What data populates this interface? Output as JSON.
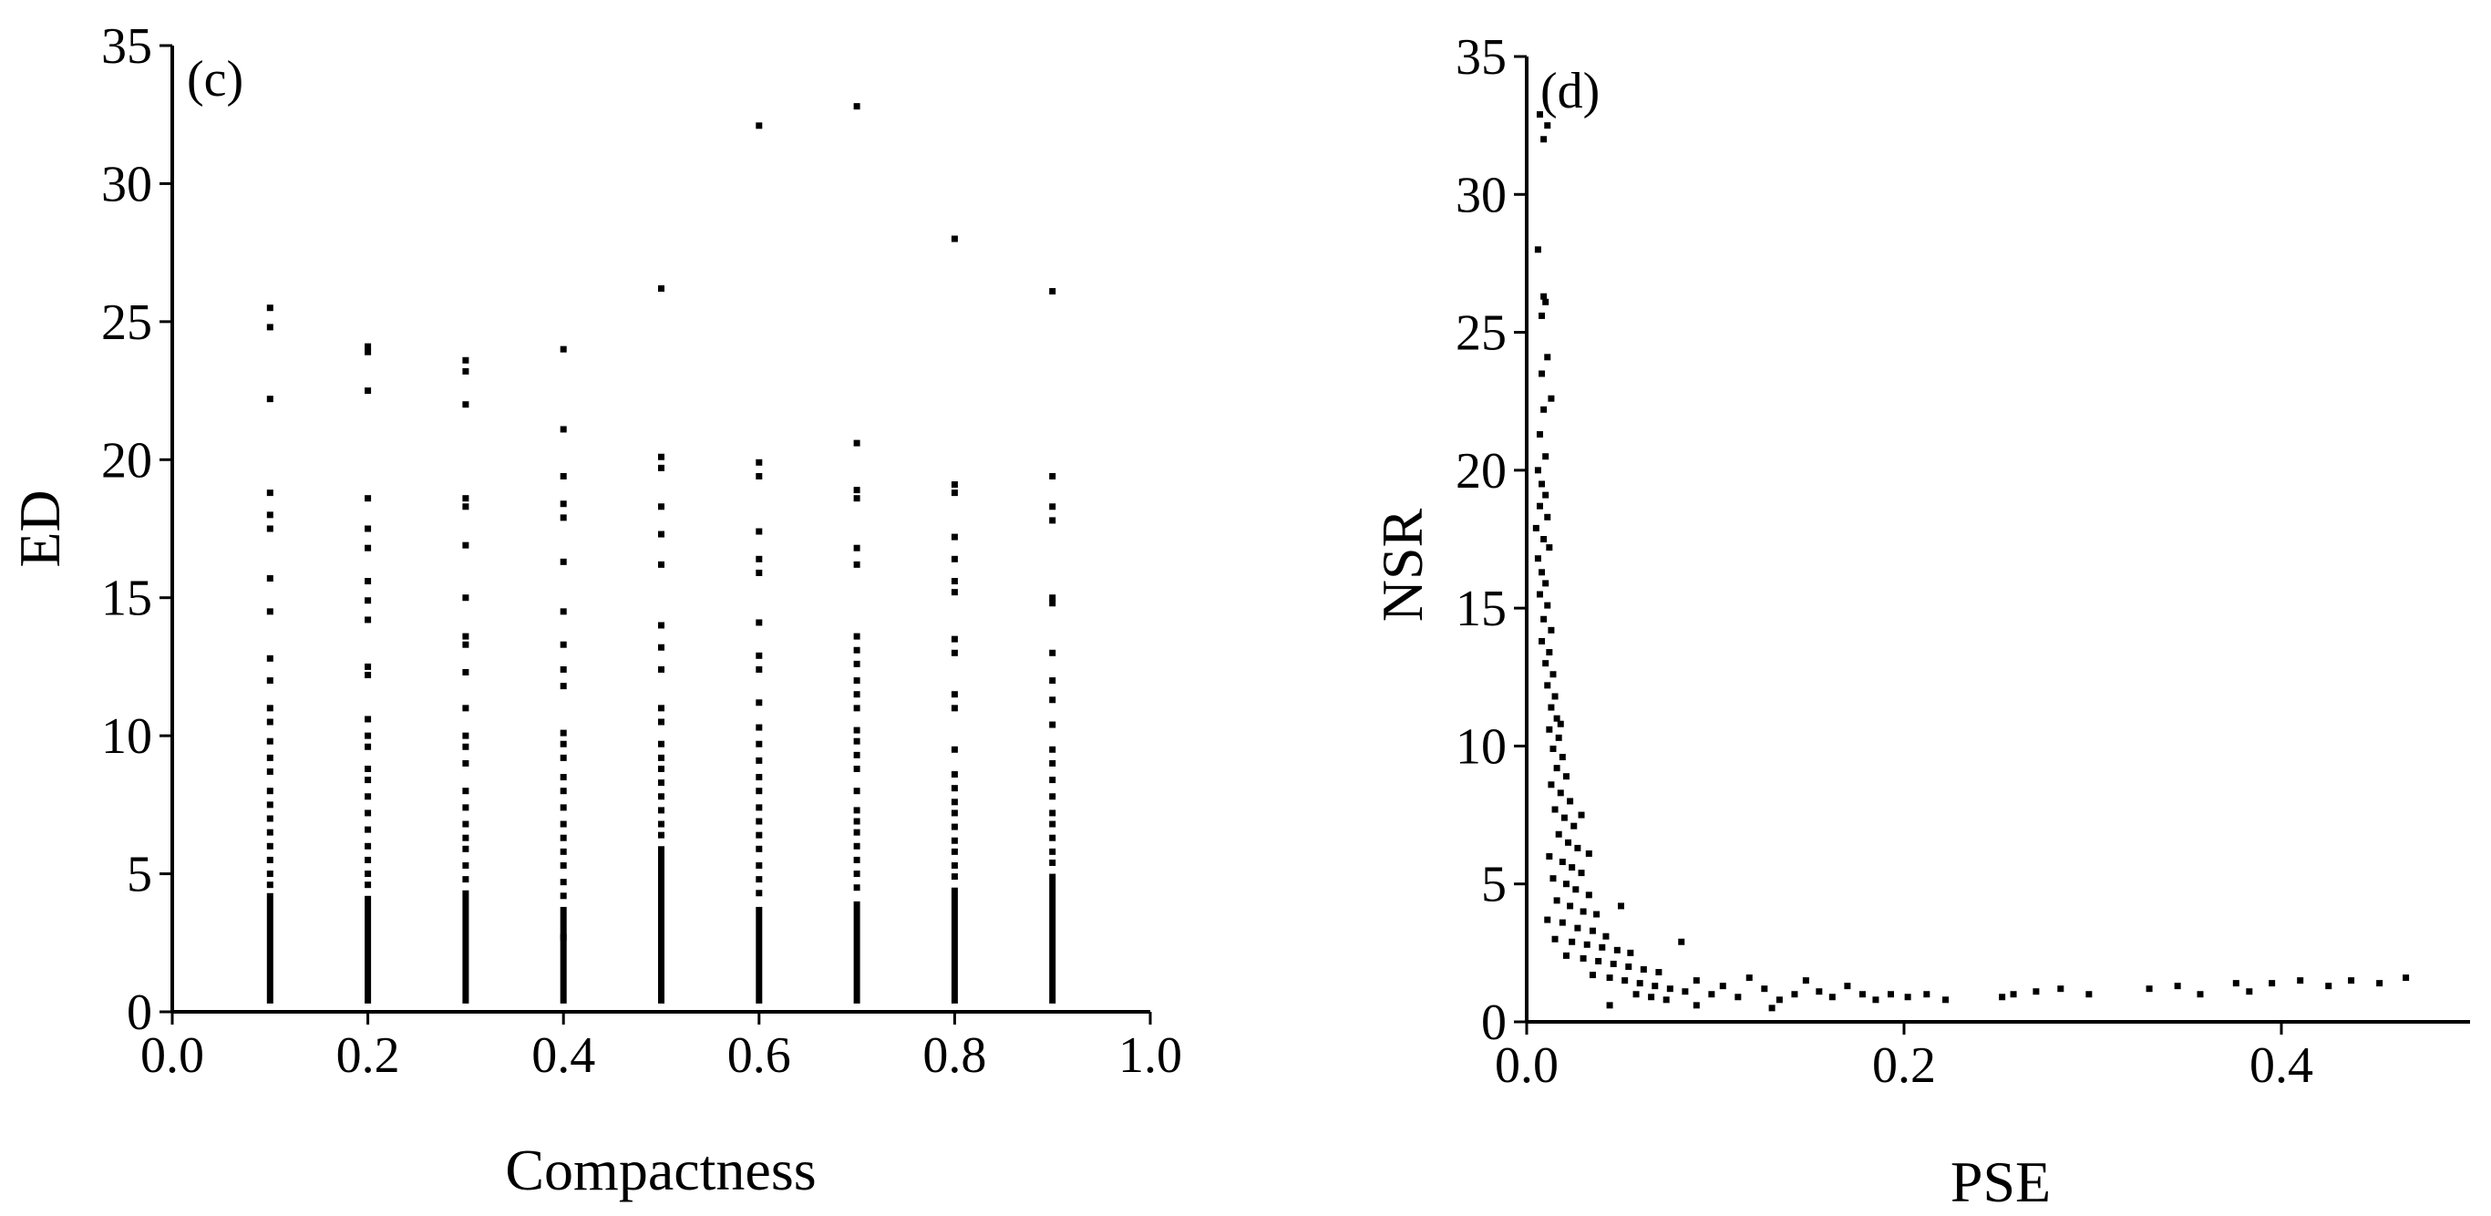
{
  "chart_data": [
    {
      "type": "scatter",
      "panel_label": "(c)",
      "xlabel": "Compactness",
      "ylabel": "ED",
      "xlim": [
        0.0,
        1.0
      ],
      "ylim": [
        0,
        35
      ],
      "xticks": [
        "0.0",
        "0.2",
        "0.4",
        "0.6",
        "0.8",
        "1.0"
      ],
      "yticks": [
        "0",
        "5",
        "10",
        "15",
        "20",
        "25",
        "30",
        "35"
      ],
      "grid": false,
      "columns": [
        {
          "x": 0.1,
          "dense_max": 4.3,
          "points": [
            25.5,
            24.8,
            22.2,
            18.8,
            18.0,
            17.5,
            15.7,
            14.5,
            12.8,
            12.0,
            11.0,
            10.5,
            9.8,
            9.2,
            8.7,
            8.0,
            7.5,
            7.0,
            6.5,
            6.0,
            5.5,
            5.0,
            4.6
          ]
        },
        {
          "x": 0.2,
          "dense_max": 4.2,
          "points": [
            24.1,
            23.9,
            22.5,
            18.6,
            17.5,
            16.8,
            15.6,
            14.9,
            14.2,
            12.5,
            12.2,
            10.6,
            10.0,
            9.6,
            8.8,
            8.4,
            7.8,
            7.2,
            6.6,
            6.0,
            5.5,
            5.0,
            4.6
          ]
        },
        {
          "x": 0.3,
          "dense_max": 4.4,
          "points": [
            23.6,
            23.2,
            22.0,
            18.6,
            18.3,
            16.9,
            15.0,
            13.6,
            13.3,
            12.3,
            11.0,
            10.0,
            9.6,
            9.0,
            8.0,
            7.4,
            6.8,
            6.3,
            5.9,
            5.3,
            4.8
          ]
        },
        {
          "x": 0.4,
          "dense_max": 3.8,
          "points": [
            24.0,
            21.1,
            19.4,
            18.4,
            17.9,
            16.3,
            14.5,
            13.3,
            12.4,
            11.8,
            10.1,
            9.7,
            9.2,
            8.5,
            8.0,
            7.4,
            6.8,
            6.3,
            5.8,
            5.3,
            4.7,
            4.2,
            2.7
          ]
        },
        {
          "x": 0.5,
          "dense_max": 6.0,
          "points": [
            26.2,
            20.1,
            19.7,
            18.3,
            17.3,
            16.2,
            14.0,
            13.2,
            12.4,
            11.0,
            10.5,
            9.7,
            9.2,
            8.8,
            8.3,
            7.8,
            7.3,
            6.8,
            6.4
          ]
        },
        {
          "x": 0.6,
          "dense_max": 3.8,
          "points": [
            32.1,
            19.9,
            19.4,
            17.4,
            16.4,
            15.9,
            14.1,
            12.9,
            12.4,
            11.2,
            10.3,
            9.7,
            9.1,
            8.5,
            8.0,
            7.4,
            6.9,
            6.4,
            5.9,
            5.3,
            4.8,
            4.3
          ]
        },
        {
          "x": 0.7,
          "dense_max": 4.0,
          "points": [
            32.8,
            20.6,
            18.9,
            18.6,
            16.8,
            16.2,
            13.6,
            13.1,
            12.6,
            12.0,
            11.5,
            11.0,
            10.2,
            9.8,
            9.3,
            8.8,
            8.0,
            7.3,
            6.9,
            6.5,
            6.0,
            5.5,
            5.0,
            4.5
          ]
        },
        {
          "x": 0.8,
          "dense_max": 4.5,
          "points": [
            28.0,
            19.1,
            18.8,
            17.2,
            16.4,
            15.6,
            15.2,
            13.5,
            13.0,
            11.5,
            11.0,
            9.5,
            8.6,
            8.1,
            7.6,
            7.2,
            6.7,
            6.2,
            5.8,
            5.3,
            4.9
          ]
        },
        {
          "x": 0.9,
          "dense_max": 5.0,
          "points": [
            26.1,
            19.4,
            18.3,
            17.8,
            15.0,
            14.8,
            13.0,
            12.0,
            11.3,
            10.4,
            9.5,
            9.0,
            8.4,
            7.8,
            7.2,
            6.8,
            6.3,
            5.8,
            5.4
          ]
        }
      ]
    },
    {
      "type": "scatter",
      "panel_label": "(d)",
      "xlabel": "PSE",
      "ylabel": "NSR",
      "xlim": [
        0.0,
        0.5
      ],
      "ylim": [
        0,
        35
      ],
      "xticks": [
        "0.0",
        "0.2",
        "0.4"
      ],
      "yticks": [
        "0",
        "5",
        "10",
        "15",
        "20",
        "25",
        "30",
        "35"
      ],
      "grid": false,
      "points": [
        [
          0.007,
          32.9
        ],
        [
          0.011,
          32.5
        ],
        [
          0.009,
          32.0
        ],
        [
          0.006,
          28.0
        ],
        [
          0.009,
          26.3
        ],
        [
          0.01,
          26.1
        ],
        [
          0.008,
          25.6
        ],
        [
          0.011,
          24.1
        ],
        [
          0.008,
          23.5
        ],
        [
          0.013,
          22.6
        ],
        [
          0.009,
          22.2
        ],
        [
          0.007,
          21.3
        ],
        [
          0.01,
          20.5
        ],
        [
          0.006,
          20.0
        ],
        [
          0.008,
          19.5
        ],
        [
          0.01,
          19.1
        ],
        [
          0.007,
          18.7
        ],
        [
          0.011,
          18.3
        ],
        [
          0.005,
          17.9
        ],
        [
          0.009,
          17.5
        ],
        [
          0.012,
          17.2
        ],
        [
          0.006,
          16.8
        ],
        [
          0.008,
          16.3
        ],
        [
          0.01,
          15.9
        ],
        [
          0.007,
          15.5
        ],
        [
          0.011,
          15.1
        ],
        [
          0.009,
          14.6
        ],
        [
          0.013,
          14.2
        ],
        [
          0.008,
          13.8
        ],
        [
          0.012,
          13.4
        ],
        [
          0.01,
          13.0
        ],
        [
          0.014,
          12.6
        ],
        [
          0.011,
          12.2
        ],
        [
          0.015,
          11.8
        ],
        [
          0.013,
          11.4
        ],
        [
          0.016,
          11.0
        ],
        [
          0.012,
          10.6
        ],
        [
          0.017,
          10.3
        ],
        [
          0.014,
          9.9
        ],
        [
          0.019,
          9.6
        ],
        [
          0.016,
          9.2
        ],
        [
          0.021,
          8.9
        ],
        [
          0.013,
          8.6
        ],
        [
          0.018,
          8.3
        ],
        [
          0.023,
          8.0
        ],
        [
          0.015,
          7.7
        ],
        [
          0.02,
          7.4
        ],
        [
          0.025,
          7.1
        ],
        [
          0.017,
          6.8
        ],
        [
          0.022,
          6.5
        ],
        [
          0.027,
          6.3
        ],
        [
          0.012,
          6.0
        ],
        [
          0.019,
          5.8
        ],
        [
          0.024,
          5.6
        ],
        [
          0.029,
          5.4
        ],
        [
          0.014,
          5.2
        ],
        [
          0.021,
          5.0
        ],
        [
          0.026,
          4.8
        ],
        [
          0.033,
          4.6
        ],
        [
          0.016,
          4.4
        ],
        [
          0.023,
          4.2
        ],
        [
          0.03,
          4.0
        ],
        [
          0.037,
          3.9
        ],
        [
          0.011,
          3.7
        ],
        [
          0.019,
          3.6
        ],
        [
          0.027,
          3.4
        ],
        [
          0.035,
          3.3
        ],
        [
          0.042,
          3.1
        ],
        [
          0.015,
          3.0
        ],
        [
          0.024,
          2.9
        ],
        [
          0.032,
          2.8
        ],
        [
          0.04,
          2.7
        ],
        [
          0.048,
          2.6
        ],
        [
          0.055,
          2.5
        ],
        [
          0.021,
          2.4
        ],
        [
          0.03,
          2.3
        ],
        [
          0.038,
          2.2
        ],
        [
          0.046,
          2.1
        ],
        [
          0.054,
          2.0
        ],
        [
          0.062,
          1.9
        ],
        [
          0.07,
          1.8
        ],
        [
          0.035,
          1.7
        ],
        [
          0.044,
          1.6
        ],
        [
          0.052,
          1.5
        ],
        [
          0.06,
          1.4
        ],
        [
          0.068,
          1.3
        ],
        [
          0.076,
          1.2
        ],
        [
          0.084,
          1.1
        ],
        [
          0.058,
          1.0
        ],
        [
          0.066,
          0.9
        ],
        [
          0.074,
          0.8
        ],
        [
          0.082,
          2.9
        ],
        [
          0.09,
          1.5
        ],
        [
          0.098,
          1.0
        ],
        [
          0.104,
          1.3
        ],
        [
          0.112,
          0.9
        ],
        [
          0.118,
          1.6
        ],
        [
          0.126,
          1.2
        ],
        [
          0.134,
          0.8
        ],
        [
          0.142,
          1.0
        ],
        [
          0.148,
          1.5
        ],
        [
          0.155,
          1.1
        ],
        [
          0.162,
          0.9
        ],
        [
          0.17,
          1.3
        ],
        [
          0.178,
          1.0
        ],
        [
          0.185,
          0.8
        ],
        [
          0.193,
          1.0
        ],
        [
          0.202,
          0.9
        ],
        [
          0.212,
          1.0
        ],
        [
          0.222,
          0.8
        ],
        [
          0.252,
          0.9
        ],
        [
          0.258,
          1.0
        ],
        [
          0.27,
          1.1
        ],
        [
          0.283,
          1.2
        ],
        [
          0.298,
          1.0
        ],
        [
          0.33,
          1.2
        ],
        [
          0.345,
          1.3
        ],
        [
          0.357,
          1.0
        ],
        [
          0.376,
          1.4
        ],
        [
          0.383,
          1.1
        ],
        [
          0.395,
          1.4
        ],
        [
          0.41,
          1.5
        ],
        [
          0.425,
          1.3
        ],
        [
          0.437,
          1.5
        ],
        [
          0.452,
          1.4
        ],
        [
          0.466,
          1.6
        ],
        [
          0.044,
          0.6
        ],
        [
          0.09,
          0.6
        ],
        [
          0.13,
          0.5
        ],
        [
          0.05,
          4.2
        ],
        [
          0.033,
          6.1
        ],
        [
          0.029,
          7.5
        ],
        [
          0.018,
          10.8
        ]
      ]
    }
  ]
}
